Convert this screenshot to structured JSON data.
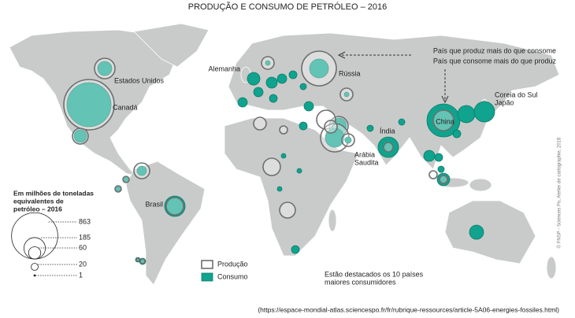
{
  "header": {
    "title": "PRODUÇÃO E CONSUMO DE PETRÓLEO – 2016"
  },
  "annotations": {
    "produces_more": "País que produz mais do que consome",
    "consumes_more": "País que consome mais do que produz"
  },
  "country_labels": [
    [
      "Canadá"
    ],
    [
      "Estados Unidos"
    ],
    [
      "Alemanha"
    ],
    [
      "Rússia"
    ],
    [
      "Coreia do Sul",
      "Japão"
    ],
    [
      "China"
    ],
    [
      "Índia"
    ],
    [
      "Arábia",
      "Saudita"
    ],
    [
      "Brasil"
    ]
  ],
  "legend": {
    "title_lines": [
      "Em milhões de toneladas",
      "equivalentes de",
      "petróleo – 2016"
    ],
    "scale_values": [
      863,
      185,
      60,
      20,
      1
    ],
    "production": "Produção",
    "consumption": "Consumo"
  },
  "note_lines": [
    "Estão destacados os 10 países",
    "maiores consumidores"
  ],
  "credit": "© FNSP - Sciences Po, Atelier de cartographie, 2018",
  "source": "(https://espace-mondial-atlas.sciencespo.fr/fr/rubrique-ressources/article-5A06-energies-fossiles.html)"
}
